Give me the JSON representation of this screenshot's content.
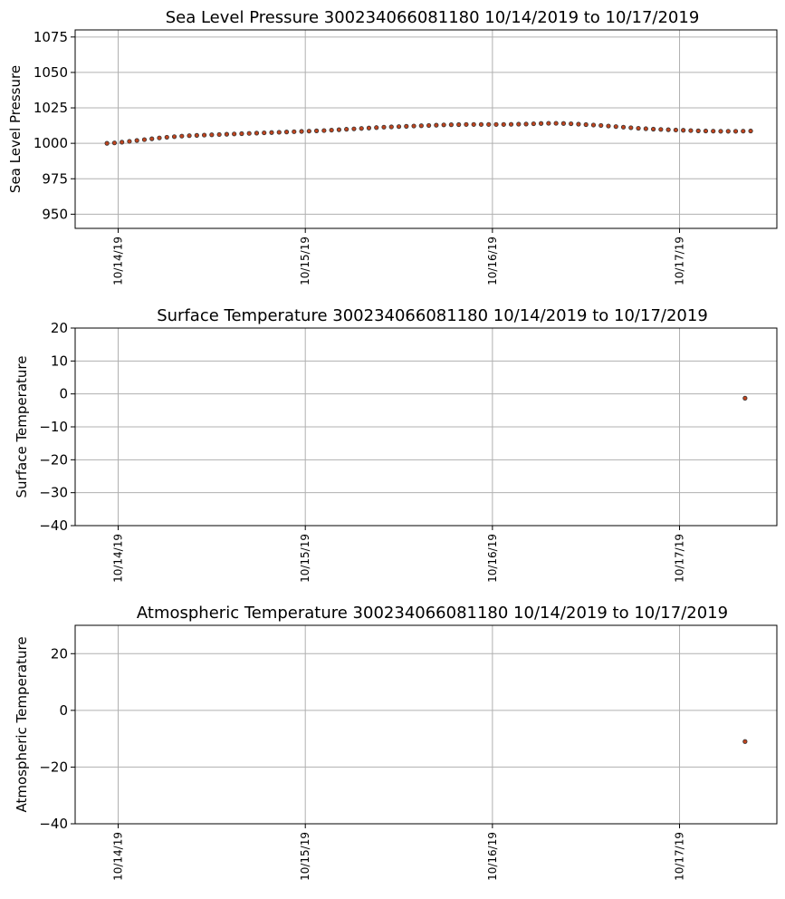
{
  "chart_data": [
    {
      "type": "scatter",
      "title": "Sea Level Pressure 300234066081180  10/14/2019 to 10/17/2019",
      "ylabel": "Sea Level Pressure",
      "xlabel": "",
      "x_ticks": [
        "10/14/19",
        "10/15/19",
        "10/16/19",
        "10/17/19"
      ],
      "x_tick_values": [
        0,
        1,
        2,
        3
      ],
      "xlim": [
        -0.23,
        3.52
      ],
      "ylim": [
        940,
        1080
      ],
      "y_ticks": [
        950,
        975,
        1000,
        1025,
        1050,
        1075
      ],
      "grid": true,
      "marker_color": "#c0441e",
      "marker_edge": "#333333",
      "series": [
        {
          "x": [
            -0.06,
            -0.02,
            0.02,
            0.06,
            0.1,
            0.14,
            0.18,
            0.22,
            0.26,
            0.3,
            0.34,
            0.38,
            0.42,
            0.46,
            0.5,
            0.54,
            0.58,
            0.62,
            0.66,
            0.7,
            0.74,
            0.78,
            0.82,
            0.86,
            0.9,
            0.94,
            0.98,
            1.02,
            1.06,
            1.1,
            1.14,
            1.18,
            1.22,
            1.26,
            1.3,
            1.34,
            1.38,
            1.42,
            1.46,
            1.5,
            1.54,
            1.58,
            1.62,
            1.66,
            1.7,
            1.74,
            1.78,
            1.82,
            1.86,
            1.9,
            1.94,
            1.98,
            2.02,
            2.06,
            2.1,
            2.14,
            2.18,
            2.22,
            2.26,
            2.3,
            2.34,
            2.38,
            2.42,
            2.46,
            2.5,
            2.54,
            2.58,
            2.62,
            2.66,
            2.7,
            2.74,
            2.78,
            2.82,
            2.86,
            2.9,
            2.94,
            2.98,
            3.02,
            3.06,
            3.1,
            3.14,
            3.18,
            3.22,
            3.26,
            3.3,
            3.34,
            3.38
          ],
          "values": [
            1000.0,
            1000.3,
            1000.8,
            1001.4,
            1002.0,
            1002.6,
            1003.2,
            1003.8,
            1004.3,
            1004.7,
            1005.1,
            1005.4,
            1005.6,
            1005.8,
            1006.0,
            1006.2,
            1006.4,
            1006.6,
            1006.8,
            1007.0,
            1007.2,
            1007.4,
            1007.6,
            1007.8,
            1008.0,
            1008.2,
            1008.4,
            1008.6,
            1008.8,
            1009.0,
            1009.3,
            1009.6,
            1009.9,
            1010.2,
            1010.5,
            1010.8,
            1011.1,
            1011.4,
            1011.6,
            1011.8,
            1012.0,
            1012.2,
            1012.4,
            1012.6,
            1012.8,
            1013.0,
            1013.1,
            1013.2,
            1013.3,
            1013.3,
            1013.3,
            1013.3,
            1013.3,
            1013.3,
            1013.4,
            1013.5,
            1013.6,
            1013.8,
            1014.0,
            1014.1,
            1014.1,
            1014.0,
            1013.8,
            1013.5,
            1013.2,
            1012.9,
            1012.6,
            1012.2,
            1011.8,
            1011.4,
            1011.0,
            1010.6,
            1010.3,
            1010.0,
            1009.8,
            1009.6,
            1009.4,
            1009.2,
            1009.0,
            1008.8,
            1008.7,
            1008.6,
            1008.5,
            1008.5,
            1008.5,
            1008.6,
            1008.7
          ]
        }
      ]
    },
    {
      "type": "scatter",
      "title": "Surface Temperature 300234066081180  10/14/2019 to 10/17/2019",
      "ylabel": "Surface Temperature",
      "xlabel": "",
      "x_ticks": [
        "10/14/19",
        "10/15/19",
        "10/16/19",
        "10/17/19"
      ],
      "x_tick_values": [
        0,
        1,
        2,
        3
      ],
      "xlim": [
        -0.23,
        3.52
      ],
      "ylim": [
        -40,
        20
      ],
      "y_ticks": [
        -40,
        -30,
        -20,
        -10,
        0,
        10,
        20
      ],
      "grid": true,
      "marker_color": "#c0441e",
      "marker_edge": "#333333",
      "series": [
        {
          "x": [
            3.35
          ],
          "values": [
            -1.3
          ]
        }
      ]
    },
    {
      "type": "scatter",
      "title": "Atmospheric Temperature 300234066081180  10/14/2019 to 10/17/2019",
      "ylabel": "Atmospheric Temperature",
      "xlabel": "",
      "x_ticks": [
        "10/14/19",
        "10/15/19",
        "10/16/19",
        "10/17/19"
      ],
      "x_tick_values": [
        0,
        1,
        2,
        3
      ],
      "xlim": [
        -0.23,
        3.52
      ],
      "ylim": [
        -40,
        30
      ],
      "y_ticks": [
        -40,
        -20,
        0,
        20
      ],
      "grid": true,
      "marker_color": "#c0441e",
      "marker_edge": "#333333",
      "series": [
        {
          "x": [
            3.35
          ],
          "values": [
            -11.0
          ]
        }
      ]
    }
  ]
}
